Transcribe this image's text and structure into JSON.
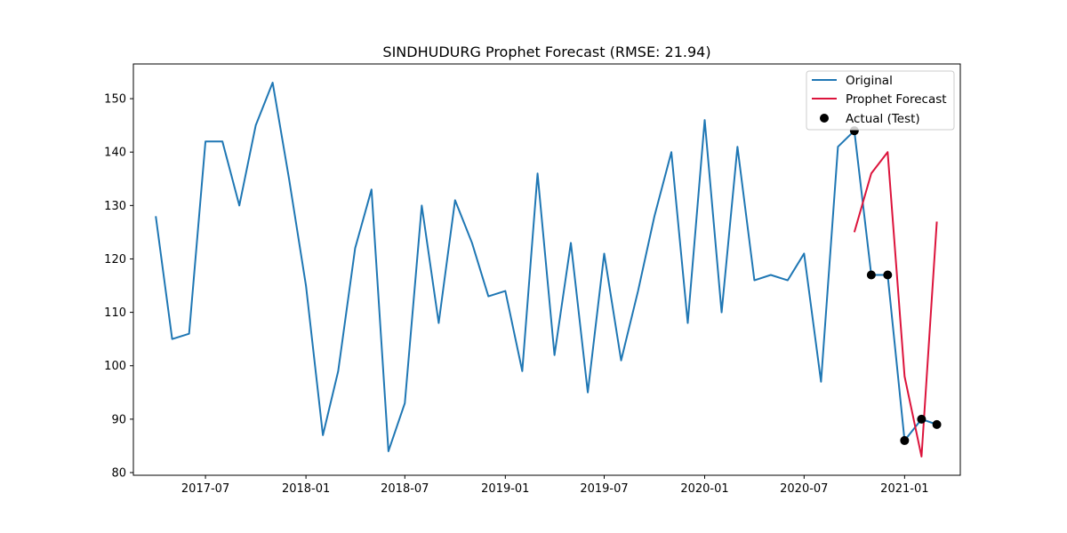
{
  "chart_data": {
    "type": "line",
    "title": "SINDHUDURG Prophet Forecast (RMSE: 21.94)",
    "xlabel": "",
    "ylabel": "",
    "ylim": [
      79.5,
      156.5
    ],
    "xlim": [
      "2017-02-19",
      "2021-04-13"
    ],
    "y_ticks": [
      80,
      90,
      100,
      110,
      120,
      130,
      140,
      150
    ],
    "x_ticks": [
      "2017-07",
      "2018-01",
      "2018-07",
      "2019-01",
      "2019-07",
      "2020-01",
      "2020-07",
      "2021-01"
    ],
    "grid": false,
    "legend_position": "top-right",
    "colors": {
      "original": "#1f77b4",
      "forecast": "#dc143c",
      "actual": "#000000"
    },
    "series": [
      {
        "name": "Original",
        "kind": "line",
        "x": [
          "2017-04",
          "2017-05",
          "2017-06",
          "2017-07",
          "2017-08",
          "2017-09",
          "2017-10",
          "2017-11",
          "2017-12",
          "2018-01",
          "2018-02",
          "2018-03",
          "2018-04",
          "2018-05",
          "2018-06",
          "2018-07",
          "2018-08",
          "2018-09",
          "2018-10",
          "2018-11",
          "2018-12",
          "2019-01",
          "2019-02",
          "2019-03",
          "2019-04",
          "2019-05",
          "2019-06",
          "2019-07",
          "2019-08",
          "2019-09",
          "2019-10",
          "2019-11",
          "2019-12",
          "2020-01",
          "2020-02",
          "2020-03",
          "2020-04",
          "2020-05",
          "2020-06",
          "2020-07",
          "2020-08",
          "2020-09",
          "2020-10",
          "2020-11",
          "2020-12",
          "2021-01",
          "2021-02",
          "2021-03"
        ],
        "values": [
          128,
          105,
          106,
          142,
          142,
          130,
          145,
          153,
          135,
          115,
          87,
          99,
          122,
          133,
          84,
          93,
          130,
          108,
          131,
          123,
          113,
          114,
          99,
          136,
          102,
          123,
          95,
          121,
          101,
          114,
          128,
          140,
          108,
          146,
          110,
          141,
          116,
          117,
          116,
          121,
          97,
          141,
          144,
          117,
          117,
          86,
          90,
          89
        ]
      },
      {
        "name": "Prophet Forecast",
        "kind": "line",
        "x": [
          "2020-10",
          "2020-11",
          "2020-12",
          "2021-01",
          "2021-02",
          "2021-03"
        ],
        "values": [
          125,
          136,
          140,
          98,
          83,
          127
        ]
      },
      {
        "name": "Actual (Test)",
        "kind": "scatter",
        "x": [
          "2020-10",
          "2020-11",
          "2020-12",
          "2021-01",
          "2021-02",
          "2021-03"
        ],
        "values": [
          144,
          117,
          117,
          86,
          90,
          89
        ]
      }
    ]
  }
}
